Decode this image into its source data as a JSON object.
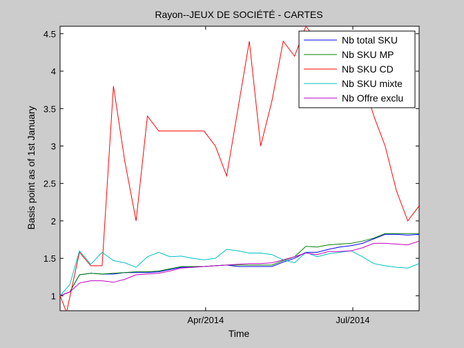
{
  "chart_data": {
    "type": "line",
    "title": "Rayon--JEUX DE SOCIÉTÉ - CARTES",
    "xlabel": "Time",
    "ylabel": "Basis point as of 1st January",
    "xlim": [
      "2014-01-01",
      "2014-08-11"
    ],
    "ylim": [
      0.8,
      4.6
    ],
    "yticks": [
      1,
      1.5,
      2,
      2.5,
      3,
      3.5,
      4,
      4.5
    ],
    "yticklabels": [
      "1",
      "1.5",
      "2",
      "2.5",
      "3",
      "3.5",
      "4",
      "4.5"
    ],
    "xticks": [
      "2014-04-01",
      "2014-07-01"
    ],
    "xticklabels": [
      "Apr/2014",
      "Jul/2014"
    ],
    "grid": false,
    "legend_position": "top-right",
    "series": [
      {
        "name": "Nb total SKU",
        "color": "#0000ff",
        "points": [
          [
            "2014-01-01",
            1.0
          ],
          [
            "2014-01-07",
            1.05
          ],
          [
            "2014-01-13",
            1.28
          ],
          [
            "2014-01-20",
            1.3
          ],
          [
            "2014-01-27",
            1.29
          ],
          [
            "2014-02-03",
            1.29
          ],
          [
            "2014-02-10",
            1.31
          ],
          [
            "2014-02-17",
            1.31
          ],
          [
            "2014-02-24",
            1.31
          ],
          [
            "2014-03-03",
            1.32
          ],
          [
            "2014-03-10",
            1.35
          ],
          [
            "2014-03-17",
            1.38
          ],
          [
            "2014-03-24",
            1.38
          ],
          [
            "2014-03-31",
            1.39
          ],
          [
            "2014-04-07",
            1.4
          ],
          [
            "2014-04-14",
            1.41
          ],
          [
            "2014-04-21",
            1.39
          ],
          [
            "2014-04-28",
            1.39
          ],
          [
            "2014-05-05",
            1.39
          ],
          [
            "2014-05-12",
            1.39
          ],
          [
            "2014-05-19",
            1.45
          ],
          [
            "2014-05-26",
            1.5
          ],
          [
            "2014-06-02",
            1.58
          ],
          [
            "2014-06-09",
            1.58
          ],
          [
            "2014-06-16",
            1.62
          ],
          [
            "2014-06-23",
            1.65
          ],
          [
            "2014-06-30",
            1.67
          ],
          [
            "2014-07-07",
            1.7
          ],
          [
            "2014-07-14",
            1.76
          ],
          [
            "2014-07-21",
            1.82
          ],
          [
            "2014-07-28",
            1.82
          ],
          [
            "2014-08-04",
            1.81
          ],
          [
            "2014-08-11",
            1.82
          ]
        ]
      },
      {
        "name": "Nb SKU MP",
        "color": "#008000",
        "points": [
          [
            "2014-01-01",
            1.0
          ],
          [
            "2014-01-07",
            1.05
          ],
          [
            "2014-01-13",
            1.28
          ],
          [
            "2014-01-20",
            1.3
          ],
          [
            "2014-01-27",
            1.29
          ],
          [
            "2014-02-03",
            1.3
          ],
          [
            "2014-02-10",
            1.31
          ],
          [
            "2014-02-17",
            1.32
          ],
          [
            "2014-02-24",
            1.32
          ],
          [
            "2014-03-03",
            1.33
          ],
          [
            "2014-03-10",
            1.36
          ],
          [
            "2014-03-17",
            1.39
          ],
          [
            "2014-03-24",
            1.39
          ],
          [
            "2014-03-31",
            1.39
          ],
          [
            "2014-04-07",
            1.4
          ],
          [
            "2014-04-14",
            1.41
          ],
          [
            "2014-04-21",
            1.41
          ],
          [
            "2014-04-28",
            1.41
          ],
          [
            "2014-05-05",
            1.41
          ],
          [
            "2014-05-12",
            1.41
          ],
          [
            "2014-05-19",
            1.47
          ],
          [
            "2014-05-26",
            1.52
          ],
          [
            "2014-06-02",
            1.66
          ],
          [
            "2014-06-09",
            1.65
          ],
          [
            "2014-06-16",
            1.68
          ],
          [
            "2014-06-23",
            1.69
          ],
          [
            "2014-06-30",
            1.7
          ],
          [
            "2014-07-07",
            1.73
          ],
          [
            "2014-07-14",
            1.77
          ],
          [
            "2014-07-21",
            1.83
          ],
          [
            "2014-07-28",
            1.83
          ],
          [
            "2014-08-04",
            1.83
          ],
          [
            "2014-08-11",
            1.83
          ]
        ]
      },
      {
        "name": "Nb SKU CD",
        "color": "#ff0000",
        "points": [
          [
            "2014-01-01",
            1.0
          ],
          [
            "2014-01-05",
            0.78
          ],
          [
            "2014-01-13",
            1.58
          ],
          [
            "2014-01-20",
            1.4
          ],
          [
            "2014-01-27",
            1.4
          ],
          [
            "2014-02-03",
            3.8
          ],
          [
            "2014-02-10",
            2.8
          ],
          [
            "2014-02-17",
            2.0
          ],
          [
            "2014-02-24",
            3.4
          ],
          [
            "2014-03-03",
            3.2
          ],
          [
            "2014-03-10",
            3.2
          ],
          [
            "2014-03-17",
            3.2
          ],
          [
            "2014-03-24",
            3.2
          ],
          [
            "2014-03-31",
            3.2
          ],
          [
            "2014-04-07",
            3.0
          ],
          [
            "2014-04-14",
            2.6
          ],
          [
            "2014-04-21",
            3.5
          ],
          [
            "2014-04-28",
            4.4
          ],
          [
            "2014-05-05",
            3.0
          ],
          [
            "2014-05-12",
            3.6
          ],
          [
            "2014-05-19",
            4.4
          ],
          [
            "2014-05-26",
            4.2
          ],
          [
            "2014-06-02",
            4.6
          ],
          [
            "2014-06-09",
            4.4
          ],
          [
            "2014-06-16",
            4.4
          ],
          [
            "2014-06-23",
            4.4
          ],
          [
            "2014-06-30",
            4.4
          ],
          [
            "2014-07-07",
            3.9
          ],
          [
            "2014-07-14",
            3.4
          ],
          [
            "2014-07-21",
            3.0
          ],
          [
            "2014-07-28",
            2.4
          ],
          [
            "2014-08-04",
            2.0
          ],
          [
            "2014-08-11",
            2.2
          ]
        ]
      },
      {
        "name": "Nb SKU mixte",
        "color": "#00bfbf",
        "points": [
          [
            "2014-01-01",
            1.0
          ],
          [
            "2014-01-07",
            1.15
          ],
          [
            "2014-01-13",
            1.6
          ],
          [
            "2014-01-20",
            1.42
          ],
          [
            "2014-01-27",
            1.58
          ],
          [
            "2014-02-03",
            1.47
          ],
          [
            "2014-02-10",
            1.44
          ],
          [
            "2014-02-17",
            1.38
          ],
          [
            "2014-02-24",
            1.52
          ],
          [
            "2014-03-03",
            1.58
          ],
          [
            "2014-03-10",
            1.52
          ],
          [
            "2014-03-17",
            1.53
          ],
          [
            "2014-03-24",
            1.5
          ],
          [
            "2014-03-31",
            1.48
          ],
          [
            "2014-04-07",
            1.5
          ],
          [
            "2014-04-14",
            1.62
          ],
          [
            "2014-04-21",
            1.6
          ],
          [
            "2014-04-28",
            1.57
          ],
          [
            "2014-05-05",
            1.57
          ],
          [
            "2014-05-12",
            1.55
          ],
          [
            "2014-05-19",
            1.48
          ],
          [
            "2014-05-26",
            1.44
          ],
          [
            "2014-06-02",
            1.58
          ],
          [
            "2014-06-09",
            1.52
          ],
          [
            "2014-06-16",
            1.56
          ],
          [
            "2014-06-23",
            1.58
          ],
          [
            "2014-06-30",
            1.6
          ],
          [
            "2014-07-07",
            1.52
          ],
          [
            "2014-07-14",
            1.43
          ],
          [
            "2014-07-21",
            1.4
          ],
          [
            "2014-07-28",
            1.38
          ],
          [
            "2014-08-04",
            1.37
          ],
          [
            "2014-08-11",
            1.43
          ]
        ]
      },
      {
        "name": "Nb Offre exclu",
        "color": "#bf00bf",
        "points": [
          [
            "2014-01-01",
            1.0
          ],
          [
            "2014-01-07",
            1.05
          ],
          [
            "2014-01-13",
            1.17
          ],
          [
            "2014-01-20",
            1.2
          ],
          [
            "2014-01-27",
            1.2
          ],
          [
            "2014-02-03",
            1.18
          ],
          [
            "2014-02-10",
            1.22
          ],
          [
            "2014-02-17",
            1.28
          ],
          [
            "2014-02-24",
            1.29
          ],
          [
            "2014-03-03",
            1.3
          ],
          [
            "2014-03-10",
            1.33
          ],
          [
            "2014-03-17",
            1.37
          ],
          [
            "2014-03-24",
            1.38
          ],
          [
            "2014-03-31",
            1.39
          ],
          [
            "2014-04-07",
            1.4
          ],
          [
            "2014-04-14",
            1.41
          ],
          [
            "2014-04-21",
            1.42
          ],
          [
            "2014-04-28",
            1.43
          ],
          [
            "2014-05-05",
            1.43
          ],
          [
            "2014-05-12",
            1.44
          ],
          [
            "2014-05-19",
            1.48
          ],
          [
            "2014-05-26",
            1.52
          ],
          [
            "2014-06-02",
            1.57
          ],
          [
            "2014-06-09",
            1.55
          ],
          [
            "2014-06-16",
            1.59
          ],
          [
            "2014-06-23",
            1.59
          ],
          [
            "2014-06-30",
            1.6
          ],
          [
            "2014-07-07",
            1.64
          ],
          [
            "2014-07-14",
            1.7
          ],
          [
            "2014-07-21",
            1.7
          ],
          [
            "2014-07-28",
            1.69
          ],
          [
            "2014-08-04",
            1.68
          ],
          [
            "2014-08-11",
            1.73
          ]
        ]
      }
    ]
  }
}
